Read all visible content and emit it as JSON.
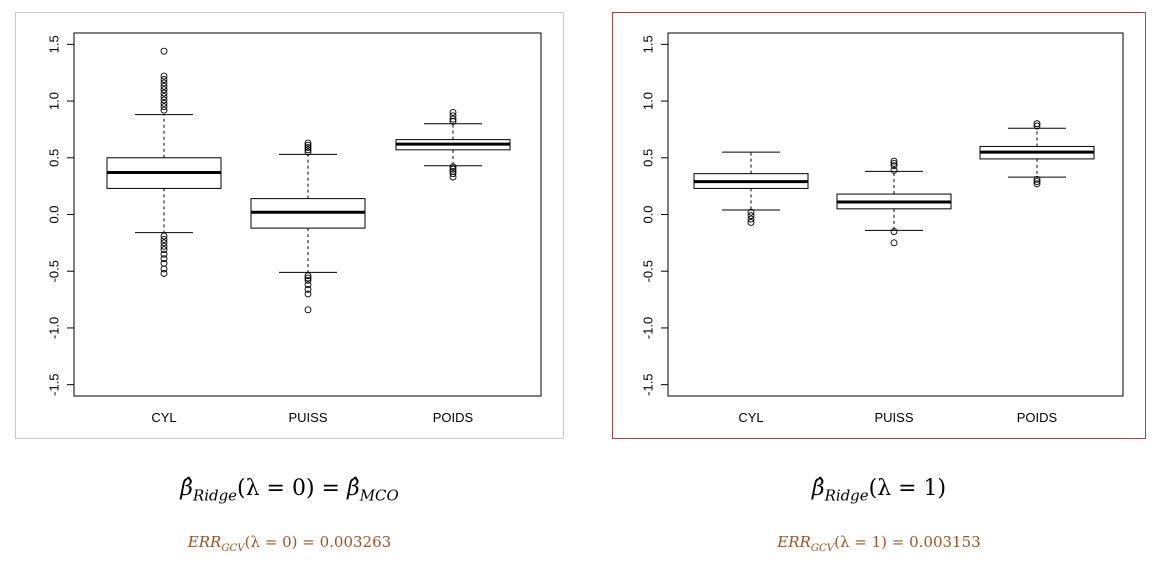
{
  "chart_data": [
    {
      "type": "boxplot",
      "categories": [
        "CYL",
        "PUISS",
        "POIDS"
      ],
      "yticks": [
        "1.5",
        "1.0",
        "0.5",
        "0.0",
        "-0.5",
        "-1.0",
        "-1.5"
      ],
      "ylim": [
        -1.6,
        1.6
      ],
      "grid": false,
      "boxes": [
        {
          "name": "CYL",
          "whisker_low": -0.16,
          "q1": 0.23,
          "median": 0.37,
          "q3": 0.5,
          "whisker_high": 0.88,
          "outliers": [
            1.44,
            1.22,
            1.19,
            1.16,
            1.13,
            1.1,
            1.07,
            1.04,
            1.01,
            0.98,
            0.95,
            0.92,
            -0.19,
            -0.22,
            -0.25,
            -0.28,
            -0.31,
            -0.35,
            -0.39,
            -0.43,
            -0.48,
            -0.52
          ]
        },
        {
          "name": "PUISS",
          "whisker_low": -0.51,
          "q1": -0.12,
          "median": 0.02,
          "q3": 0.14,
          "whisker_high": 0.53,
          "outliers": [
            0.63,
            0.61,
            0.59,
            0.57,
            0.55,
            -0.54,
            -0.56,
            -0.58,
            -0.62,
            -0.66,
            -0.7,
            -0.84
          ]
        },
        {
          "name": "POIDS",
          "whisker_low": 0.43,
          "q1": 0.57,
          "median": 0.62,
          "q3": 0.66,
          "whisker_high": 0.8,
          "outliers": [
            0.9,
            0.87,
            0.84,
            0.82,
            0.42,
            0.4,
            0.38,
            0.36,
            0.33
          ]
        }
      ]
    },
    {
      "type": "boxplot",
      "categories": [
        "CYL",
        "PUISS",
        "POIDS"
      ],
      "yticks": [
        "1.5",
        "1.0",
        "0.5",
        "0.0",
        "-0.5",
        "-1.0",
        "-1.5"
      ],
      "ylim": [
        -1.6,
        1.6
      ],
      "grid": false,
      "boxes": [
        {
          "name": "CYL",
          "whisker_low": 0.04,
          "q1": 0.23,
          "median": 0.29,
          "q3": 0.36,
          "whisker_high": 0.55,
          "outliers": [
            0.02,
            -0.01,
            -0.04,
            -0.07
          ]
        },
        {
          "name": "PUISS",
          "whisker_low": -0.14,
          "q1": 0.05,
          "median": 0.11,
          "q3": 0.18,
          "whisker_high": 0.38,
          "outliers": [
            0.47,
            0.45,
            0.43,
            0.39,
            -0.15,
            -0.25
          ]
        },
        {
          "name": "POIDS",
          "whisker_low": 0.33,
          "q1": 0.49,
          "median": 0.55,
          "q3": 0.6,
          "whisker_high": 0.76,
          "outliers": [
            0.8,
            0.78,
            0.31,
            0.29,
            0.27
          ]
        }
      ]
    }
  ],
  "captions": {
    "left": {
      "beta": "β̂",
      "ridge_sub": "Ridge",
      "lambda_expr": "(λ = 0)",
      "equals": " = ",
      "beta2": "β̂",
      "mco_sub": "MCO",
      "err": "ERR",
      "gcv_sub": "GCV",
      "err_expr": "(λ = 0) = 0.003263"
    },
    "right": {
      "beta": "β̂",
      "ridge_sub": "Ridge",
      "lambda_expr": "(λ = 1)",
      "err": "ERR",
      "gcv_sub": "GCV",
      "err_expr": "(λ = 1) = 0.003153"
    }
  }
}
